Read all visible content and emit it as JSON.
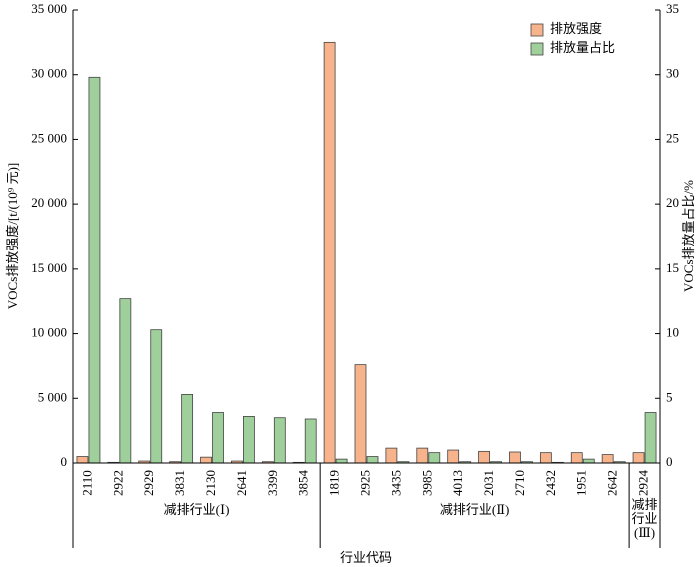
{
  "chart_data": {
    "type": "bar",
    "y_label": "VOCs排放强度/[t/(10⁹ 元)]",
    "y2_label": "VOCs排放量占比/%",
    "x_label": "行业代码",
    "groups": [
      {
        "label": "减排行业(Ⅰ)",
        "categories": [
          "2110",
          "2922",
          "2929",
          "3831",
          "2130",
          "2641",
          "3399",
          "3854"
        ]
      },
      {
        "label": "减排行业(Ⅱ)",
        "categories": [
          "1819",
          "2925",
          "3435",
          "3985",
          "4013",
          "2031",
          "2710",
          "2432",
          "1951",
          "2642"
        ]
      },
      {
        "label": "减排行业(Ⅲ)",
        "categories": [
          "2924"
        ]
      }
    ],
    "series": [
      {
        "name": "排放强度",
        "color": "#f7b48c",
        "values": [
          500,
          50,
          150,
          100,
          450,
          150,
          100,
          50,
          32500,
          7600,
          1150,
          1150,
          1000,
          900,
          850,
          800,
          800,
          650,
          800
        ]
      },
      {
        "name": "排放量占比",
        "color": "#9fcf9a",
        "axis": "y2",
        "values": [
          29.8,
          12.7,
          10.3,
          5.3,
          3.9,
          3.6,
          3.5,
          3.4,
          0.3,
          0.5,
          0.1,
          0.8,
          0.1,
          0.1,
          0.1,
          0.05,
          0.3,
          0.1,
          3.9
        ]
      }
    ],
    "ylim": [
      0,
      35000
    ],
    "yticks": [
      0,
      {
        "value": 5000,
        "label": "5 000"
      },
      {
        "value": 10000,
        "label": "10 000"
      },
      {
        "value": 15000,
        "label": "15 000"
      },
      {
        "value": 20000,
        "label": "20 000"
      },
      {
        "value": 25000,
        "label": "25 000"
      },
      {
        "value": 30000,
        "label": "30 000"
      },
      {
        "value": 35000,
        "label": "35 000"
      }
    ],
    "y2lim": [
      0,
      35
    ],
    "y2ticks": [
      0,
      5,
      10,
      15,
      20,
      25,
      30,
      35
    ],
    "legend": "upper-right"
  }
}
